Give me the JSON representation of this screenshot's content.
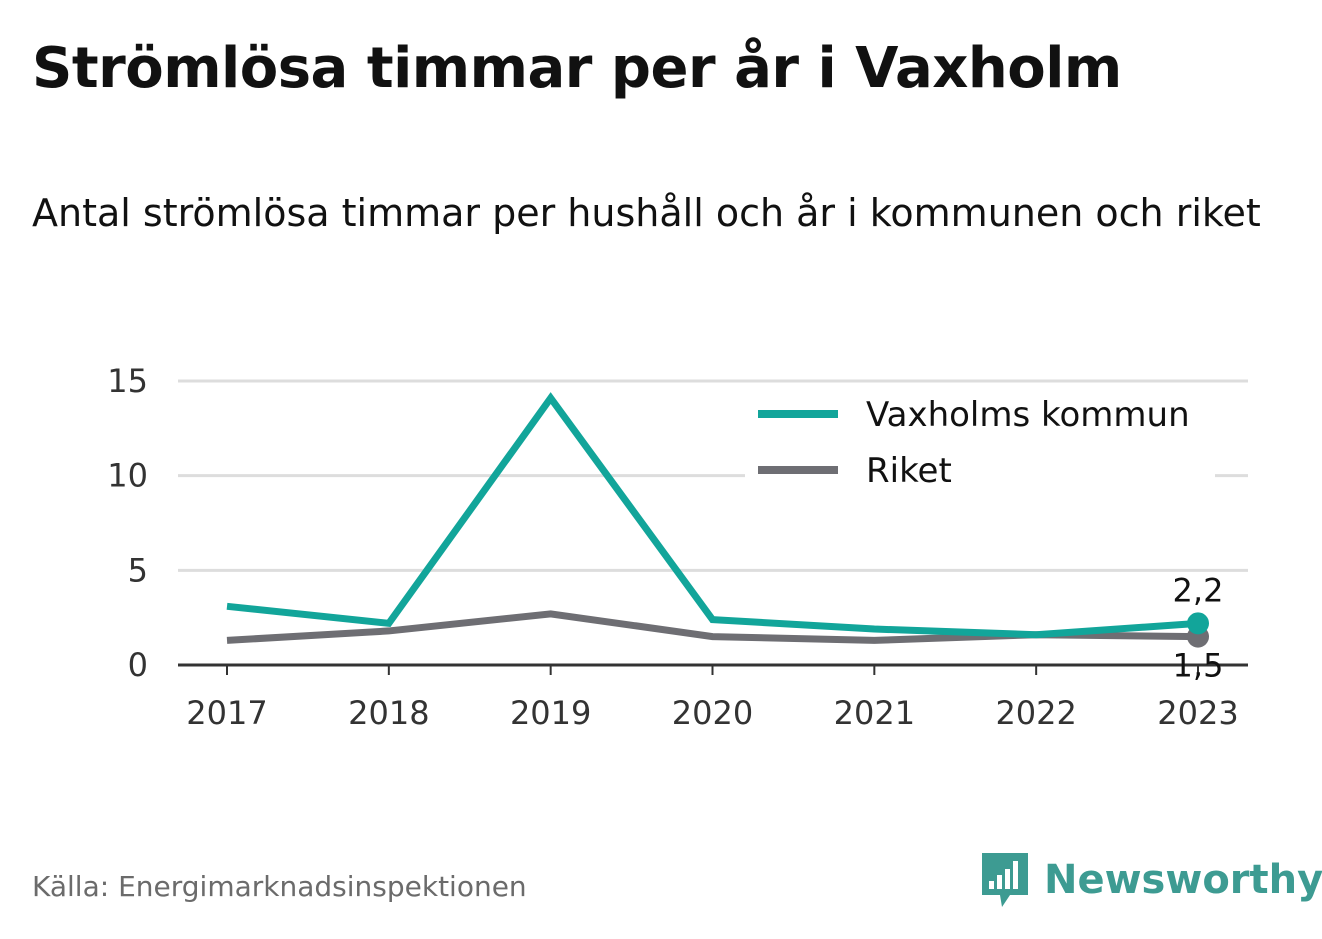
{
  "header": {
    "title": "Strömlösa timmar per år i Vaxholm",
    "subtitle": "Antal strömlösa timmar per hushåll och år i kommunen och riket"
  },
  "footer": {
    "source": "Källa: Energimarknadsinspektionen",
    "brand": "Newsworthy",
    "brand_icon": "newsworthy-logo-icon"
  },
  "colors": {
    "vaxholm": "#12a59a",
    "riket": "#6e6e73",
    "grid": "#dddddd",
    "baseline": "#333333",
    "brand": "#3d9b92"
  },
  "chart_data": {
    "type": "line",
    "x": [
      "2017",
      "2018",
      "2019",
      "2020",
      "2021",
      "2022",
      "2023"
    ],
    "ylim": [
      0,
      15
    ],
    "yticks": [
      "0",
      "5",
      "10",
      "15"
    ],
    "grid": true,
    "legend_position": "top-right",
    "series": [
      {
        "name": "Vaxholms kommun",
        "values": [
          3.1,
          2.2,
          14.1,
          2.4,
          1.9,
          1.6,
          2.2
        ],
        "end_label": "2,2"
      },
      {
        "name": "Riket",
        "values": [
          1.3,
          1.8,
          2.7,
          1.5,
          1.3,
          1.6,
          1.5
        ],
        "end_label": "1,5"
      }
    ]
  }
}
